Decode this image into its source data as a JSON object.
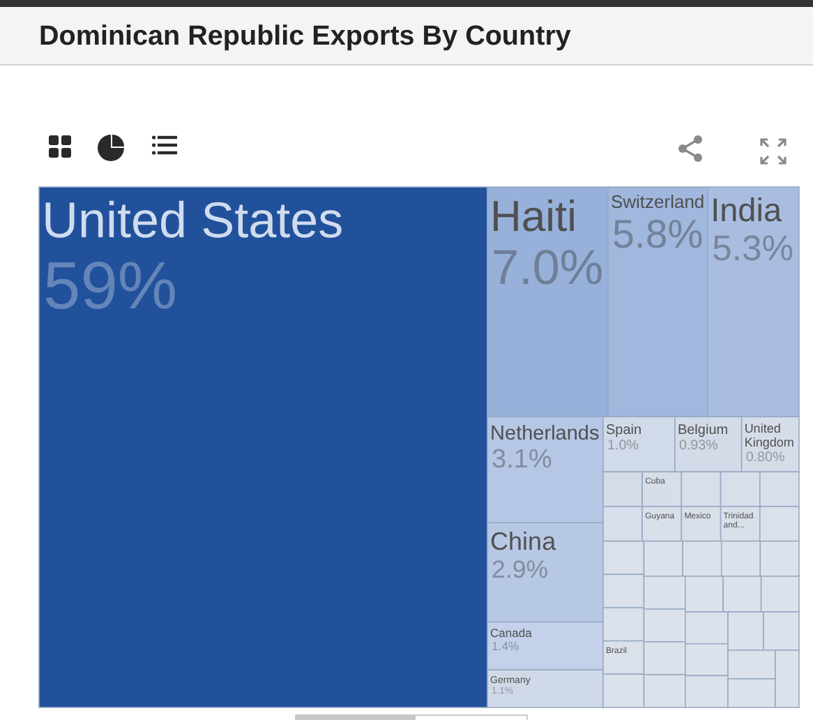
{
  "chart_data": {
    "type": "other",
    "title": "Dominican Republic Exports By Country",
    "categories": [
      "United States",
      "Haiti",
      "Switzerland",
      "India",
      "Netherlands",
      "China",
      "Canada",
      "Germany",
      "Spain",
      "Belgium",
      null,
      "United Kingdom",
      "Cuba",
      null,
      null,
      null,
      null,
      "Guyana",
      "Mexico",
      "Trinidad and...",
      null,
      null,
      null,
      null,
      "Brazil",
      null,
      null,
      null,
      null,
      null,
      null,
      null,
      null,
      null,
      null,
      null,
      null,
      null,
      null,
      null,
      null,
      null,
      null,
      null,
      null
    ],
    "values": [
      59,
      7.0,
      5.8,
      5.3,
      3.1,
      2.9,
      1.4,
      1.1,
      1.0,
      0.93,
      null,
      0.8,
      null,
      null,
      null,
      null,
      null,
      null,
      null,
      null,
      null,
      null,
      null,
      null,
      null,
      null,
      null,
      null,
      null,
      null,
      null,
      null,
      null,
      null,
      null,
      null,
      null,
      null,
      null,
      null,
      null,
      null,
      null,
      null,
      null
    ],
    "value_labels": [
      "59%",
      "7.0%",
      "5.8%",
      "5.3%",
      "3.1%",
      "2.9%",
      "1.4%",
      "1.1%",
      "1.0%",
      "0.93%",
      null,
      "0.80%",
      null,
      null,
      null,
      null,
      null,
      null,
      null,
      null,
      null,
      null,
      null,
      null,
      null,
      null,
      null,
      null,
      null,
      null,
      null,
      null,
      null,
      null,
      null,
      null,
      null,
      null,
      null,
      null,
      null,
      null,
      null,
      null,
      null
    ],
    "colors": [
      "#21519b",
      "#97b1db",
      "#a0b7de",
      "#a8bde0",
      "#b5c7e5",
      "#b7c8e5",
      "#c3d1ea",
      "#d0d9e8",
      "#d1dae8",
      "#d3dbe8",
      "#d4dce8",
      "#d5dde9",
      "#d7deea",
      "#d8dfea",
      "#d8dfea",
      "#d8dfea",
      "#d8dfea",
      "#d9e0ea",
      "#d9e0ea",
      "#d9e0ea",
      "#dae1eb",
      "#dae1eb",
      "#dae1eb",
      "#dae1eb",
      "#dae1eb",
      "#dce2ec",
      "#dce2ec",
      "#dce2ec",
      "#dce2ec",
      "#dce2ec",
      "#dce2ec",
      "#dce2ec",
      "#dce2ec",
      "#dce2ec",
      "#dce2ec",
      "#dce2ec",
      "#dce2ec",
      "#dce2ec",
      "#dce2ec",
      "#dce2ec",
      "#dce2ec",
      "#dce2ec",
      "#dce2ec",
      "#dce2ec",
      "#dce2ec"
    ]
  }
}
